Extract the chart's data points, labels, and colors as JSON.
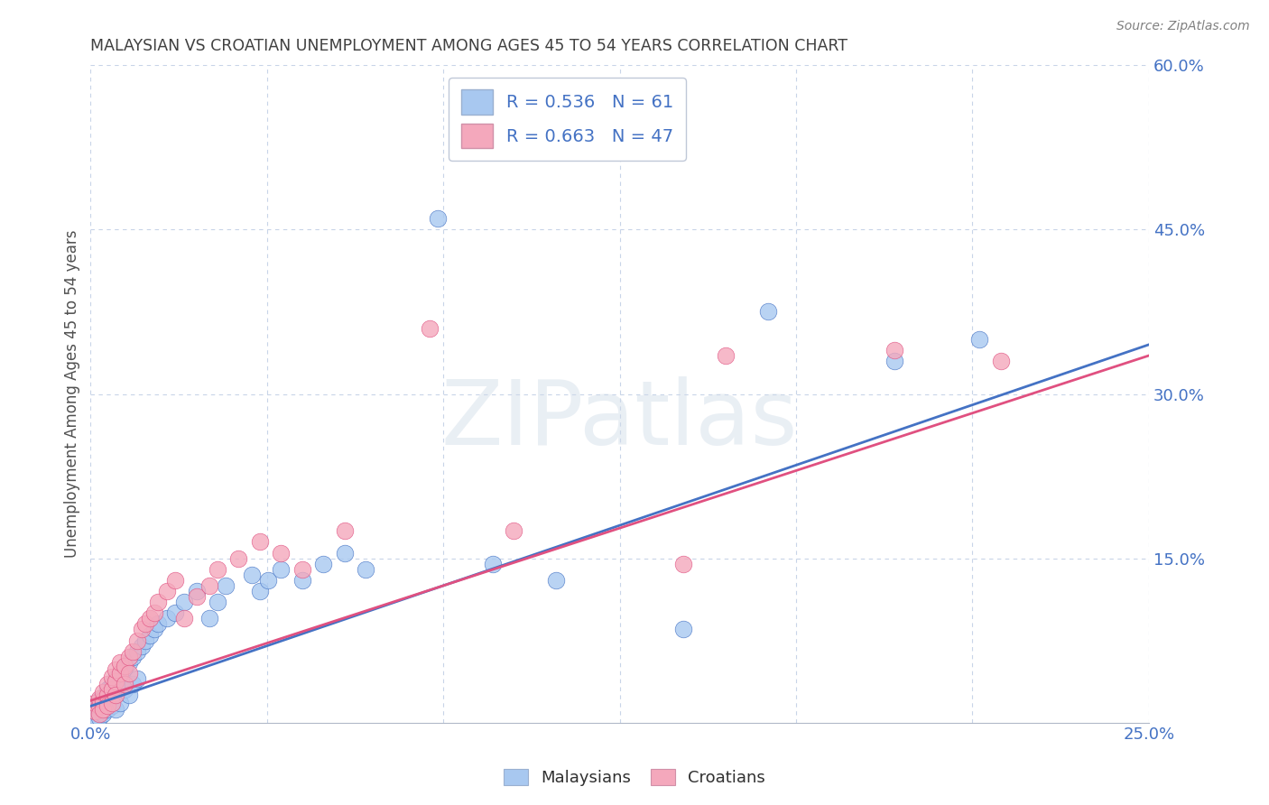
{
  "title": "MALAYSIAN VS CROATIAN UNEMPLOYMENT AMONG AGES 45 TO 54 YEARS CORRELATION CHART",
  "source": "Source: ZipAtlas.com",
  "ylabel": "Unemployment Among Ages 45 to 54 years",
  "xlim": [
    0.0,
    0.25
  ],
  "ylim": [
    0.0,
    0.6
  ],
  "watermark": "ZIPatlas",
  "malaysian_color": "#a8c8f0",
  "croatian_color": "#f4a8bc",
  "malaysian_line_color": "#4472c4",
  "croatian_line_color": "#e05080",
  "grid_color": "#c8d4e8",
  "background_color": "#ffffff",
  "title_color": "#404040",
  "tick_label_color": "#4472c4",
  "malaysian_x": [
    0.001,
    0.001,
    0.001,
    0.002,
    0.002,
    0.002,
    0.002,
    0.002,
    0.003,
    0.003,
    0.003,
    0.003,
    0.004,
    0.004,
    0.004,
    0.004,
    0.005,
    0.005,
    0.005,
    0.005,
    0.006,
    0.006,
    0.006,
    0.007,
    0.007,
    0.007,
    0.008,
    0.008,
    0.009,
    0.009,
    0.01,
    0.01,
    0.011,
    0.011,
    0.012,
    0.013,
    0.014,
    0.015,
    0.016,
    0.018,
    0.02,
    0.022,
    0.025,
    0.028,
    0.03,
    0.032,
    0.038,
    0.04,
    0.042,
    0.045,
    0.05,
    0.055,
    0.06,
    0.065,
    0.082,
    0.095,
    0.11,
    0.14,
    0.16,
    0.19,
    0.21
  ],
  "malaysian_y": [
    0.01,
    0.015,
    0.005,
    0.008,
    0.012,
    0.018,
    0.005,
    0.02,
    0.01,
    0.015,
    0.022,
    0.008,
    0.018,
    0.025,
    0.012,
    0.03,
    0.02,
    0.028,
    0.015,
    0.035,
    0.025,
    0.04,
    0.012,
    0.035,
    0.045,
    0.018,
    0.05,
    0.03,
    0.055,
    0.025,
    0.06,
    0.035,
    0.065,
    0.04,
    0.07,
    0.075,
    0.08,
    0.085,
    0.09,
    0.095,
    0.1,
    0.11,
    0.12,
    0.095,
    0.11,
    0.125,
    0.135,
    0.12,
    0.13,
    0.14,
    0.13,
    0.145,
    0.155,
    0.14,
    0.46,
    0.145,
    0.13,
    0.085,
    0.375,
    0.33,
    0.35
  ],
  "croatian_x": [
    0.001,
    0.001,
    0.002,
    0.002,
    0.002,
    0.003,
    0.003,
    0.003,
    0.004,
    0.004,
    0.004,
    0.005,
    0.005,
    0.005,
    0.006,
    0.006,
    0.006,
    0.007,
    0.007,
    0.008,
    0.008,
    0.009,
    0.009,
    0.01,
    0.011,
    0.012,
    0.013,
    0.014,
    0.015,
    0.016,
    0.018,
    0.02,
    0.022,
    0.025,
    0.028,
    0.03,
    0.035,
    0.04,
    0.045,
    0.05,
    0.06,
    0.08,
    0.1,
    0.14,
    0.15,
    0.19,
    0.215
  ],
  "croatian_y": [
    0.01,
    0.018,
    0.015,
    0.022,
    0.008,
    0.02,
    0.028,
    0.012,
    0.025,
    0.035,
    0.015,
    0.03,
    0.042,
    0.018,
    0.038,
    0.048,
    0.025,
    0.045,
    0.055,
    0.052,
    0.035,
    0.06,
    0.045,
    0.065,
    0.075,
    0.085,
    0.09,
    0.095,
    0.1,
    0.11,
    0.12,
    0.13,
    0.095,
    0.115,
    0.125,
    0.14,
    0.15,
    0.165,
    0.155,
    0.14,
    0.175,
    0.36,
    0.175,
    0.145,
    0.335,
    0.34,
    0.33
  ]
}
